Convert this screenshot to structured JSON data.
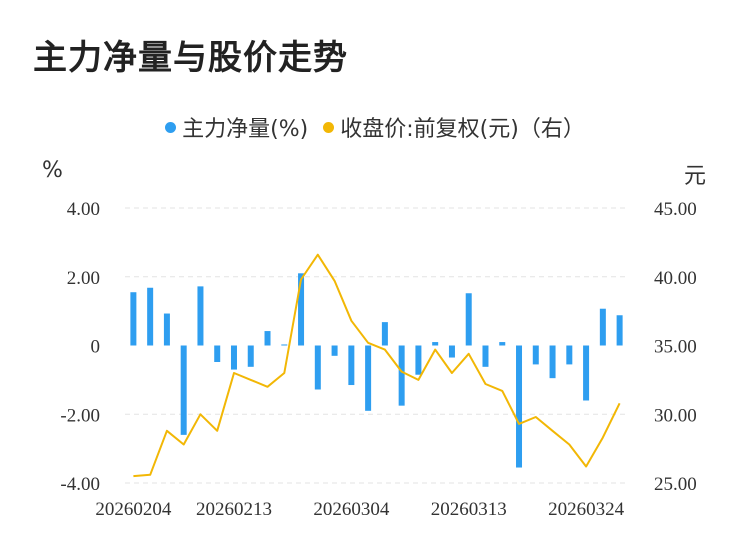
{
  "title": "主力净量与股价走势",
  "legend": [
    {
      "label": "主力净量(%)",
      "color": "#2e9ef0"
    },
    {
      "label": "收盘价:前复权(元)（右）",
      "color": "#f2b705"
    }
  ],
  "units": {
    "left": "%",
    "right": "元"
  },
  "chart_data": {
    "type": "bar+line",
    "x_ticks": [
      "20260204",
      "20260213",
      "20260304",
      "20260313",
      "20260324"
    ],
    "left_axis": {
      "ticks": [
        "4.00",
        "2.00",
        "0",
        "-2.00",
        "-4.00"
      ],
      "ylim": [
        -4,
        4
      ]
    },
    "right_axis": {
      "ticks": [
        "45.00",
        "40.00",
        "35.00",
        "30.00",
        "25.00"
      ],
      "ylim": [
        25,
        45
      ]
    },
    "series": [
      {
        "name": "主力净量(%)",
        "type": "bar",
        "color": "#2e9ef0",
        "values": [
          1.55,
          1.68,
          0.93,
          -2.6,
          1.72,
          -0.48,
          -0.7,
          -0.62,
          0.42,
          0.03,
          2.1,
          -1.28,
          -0.3,
          -1.15,
          -1.9,
          0.68,
          -1.75,
          -0.85,
          0.1,
          -0.35,
          1.52,
          -0.62,
          0.1,
          -3.55,
          -0.55,
          -0.95,
          -0.55,
          -1.6,
          1.07,
          0.88
        ]
      },
      {
        "name": "收盘价:前复权(元)（右）",
        "type": "line",
        "color": "#f2b705",
        "values": [
          25.5,
          25.6,
          28.8,
          27.8,
          30.0,
          28.8,
          33.0,
          32.5,
          32.0,
          33.0,
          39.8,
          41.6,
          39.7,
          36.8,
          35.2,
          34.7,
          33.1,
          32.5,
          34.7,
          33.0,
          34.4,
          32.2,
          31.7,
          29.3,
          29.8,
          28.8,
          27.8,
          26.2,
          28.3,
          30.8
        ]
      }
    ]
  }
}
